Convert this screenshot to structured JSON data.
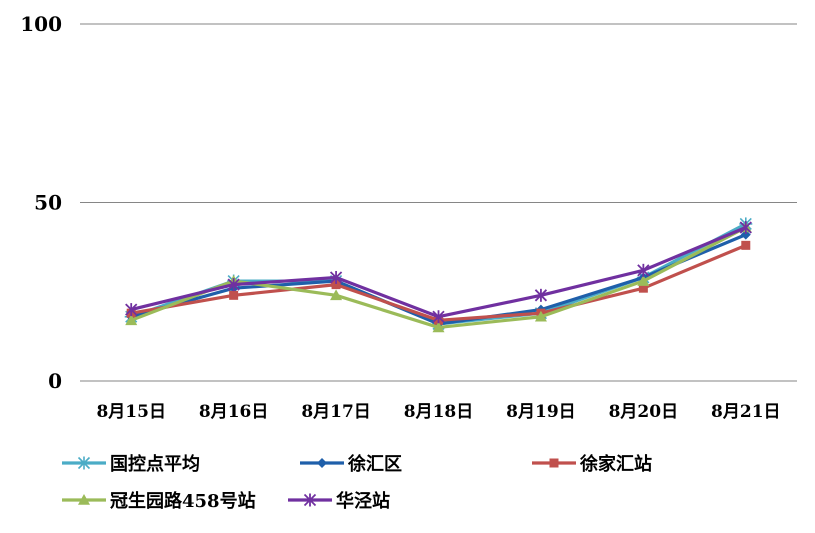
{
  "chart_data": {
    "type": "line",
    "title": "",
    "xlabel": "",
    "ylabel": "",
    "ylim": [
      0,
      100
    ],
    "yticks": [
      0,
      50,
      100
    ],
    "grid": true,
    "legend_placement": "bottom",
    "categories": [
      "8月15日",
      "8月16日",
      "8月17日",
      "8月18日",
      "8月19日",
      "8月20日",
      "8月21日"
    ],
    "series": [
      {
        "name": "国控点平均",
        "color": "#4BACC6",
        "marker": "asterisk",
        "values": [
          18,
          28,
          28,
          16,
          19,
          29,
          44
        ]
      },
      {
        "name": "徐汇区",
        "color": "#1F5FAA",
        "marker": "diamond",
        "values": [
          18,
          26,
          28,
          16,
          20,
          29,
          41
        ]
      },
      {
        "name": "徐家汇站",
        "color": "#C0504D",
        "marker": "square",
        "values": [
          19,
          24,
          27,
          17,
          19,
          26,
          38
        ]
      },
      {
        "name": "冠生园路458号站",
        "color": "#9BBB59",
        "marker": "triangle",
        "values": [
          17,
          28,
          24,
          15,
          18,
          28,
          43
        ]
      },
      {
        "name": "华泾站",
        "color": "#7030A0",
        "marker": "star",
        "values": [
          20,
          27,
          29,
          18,
          24,
          31,
          43
        ]
      }
    ]
  }
}
